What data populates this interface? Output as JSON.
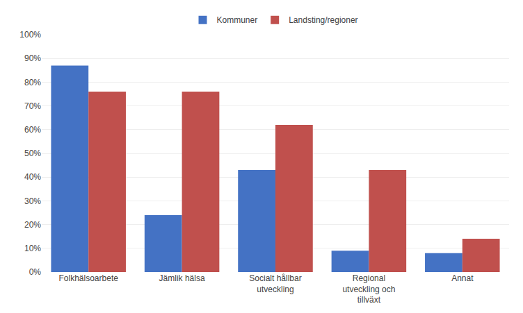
{
  "chart_data": {
    "type": "bar",
    "categories": [
      "Folkhälsoarbete",
      "Jämlik hälsa",
      "Socialt hållbar\nutveckling",
      "Regional\nutveckling och\ntillväxt",
      "Annat"
    ],
    "series": [
      {
        "name": "Kommuner",
        "color": "#4472C4",
        "values": [
          0.87,
          0.24,
          0.43,
          0.09,
          0.08
        ]
      },
      {
        "name": "Landsting/regioner",
        "color": "#C0504D",
        "values": [
          0.76,
          0.76,
          0.62,
          0.43,
          0.14
        ]
      }
    ],
    "ylim": [
      0,
      1.0
    ],
    "yticks": [
      {
        "value": 0,
        "label": "0%"
      },
      {
        "value": 0.1,
        "label": "10%"
      },
      {
        "value": 0.2,
        "label": "20%"
      },
      {
        "value": 0.3,
        "label": "30%"
      },
      {
        "value": 0.4,
        "label": "40%"
      },
      {
        "value": 0.5,
        "label": "50%"
      },
      {
        "value": 0.6,
        "label": "60%"
      },
      {
        "value": 0.7,
        "label": "70%"
      },
      {
        "value": 0.8,
        "label": "80%"
      },
      {
        "value": 0.9,
        "label": "90%"
      },
      {
        "value": 1.0,
        "label": "100%"
      }
    ],
    "grid": true,
    "legend": "top"
  }
}
